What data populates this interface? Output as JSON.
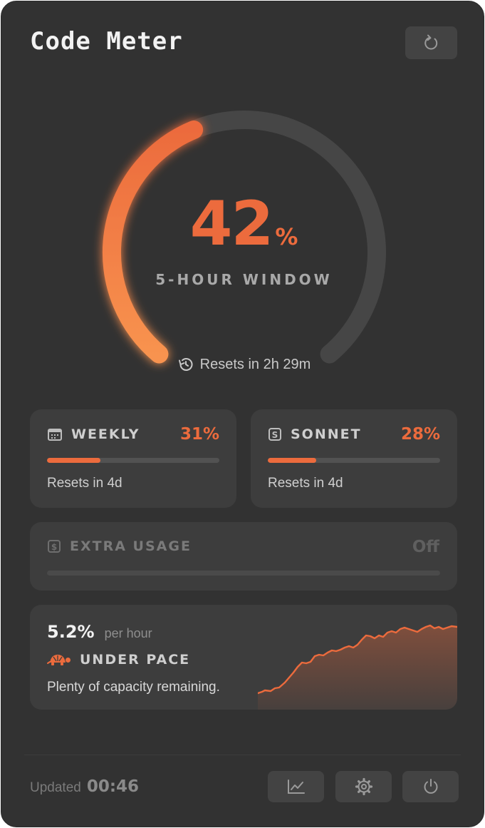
{
  "app": {
    "title": "Code Meter"
  },
  "gauge": {
    "percent_value": "42",
    "percent_unit": "%",
    "fraction": 0.42,
    "label": "5-HOUR WINDOW",
    "reset_text": "Resets in 2h 29m"
  },
  "weekly": {
    "label": "WEEKLY",
    "percent": "31%",
    "fraction": 0.31,
    "reset_text": "Resets in 4d"
  },
  "sonnet": {
    "label": "SONNET",
    "percent": "28%",
    "fraction": 0.28,
    "reset_text": "Resets in 4d"
  },
  "extra_usage": {
    "label": "EXTRA USAGE",
    "status": "Off"
  },
  "pace": {
    "rate": "5.2%",
    "rate_unit": "per hour",
    "status": "UNDER PACE",
    "note": "Plenty of capacity remaining."
  },
  "footer": {
    "updated_label": "Updated",
    "updated_time": "00:46"
  },
  "icons": {
    "refresh": "refresh-icon",
    "history": "history-icon",
    "calendar": "calendar-icon",
    "sonnet": "s-badge-icon",
    "dollar": "dollar-icon",
    "turtle": "turtle-icon",
    "chart": "chart-icon",
    "settings": "gear-icon",
    "power": "power-icon"
  },
  "colors": {
    "accent": "#ec6b3d",
    "background": "#323232",
    "card": "#3d3d3d",
    "track": "#464646"
  }
}
